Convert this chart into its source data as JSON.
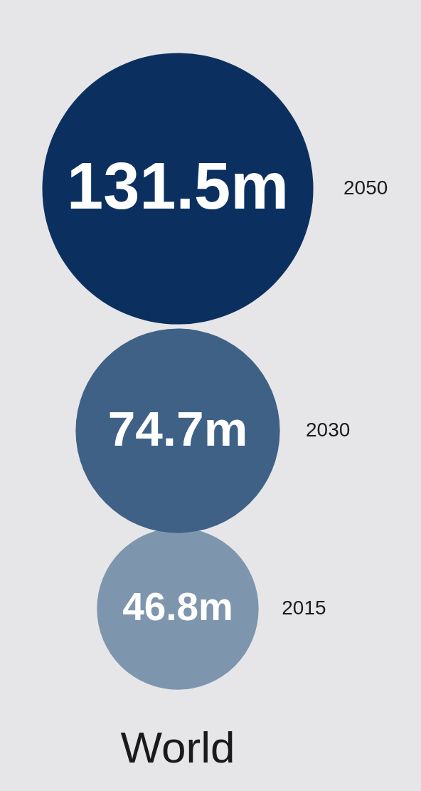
{
  "chart_data": {
    "type": "other",
    "xlabel": "World",
    "categories": [
      "2050",
      "2030",
      "2015"
    ],
    "values": [
      131.5,
      74.7,
      46.8
    ],
    "value_labels": [
      "131.5m",
      "74.7m",
      "46.8m"
    ],
    "colors": [
      "#0b3060",
      "#3f6186",
      "#7e95ae"
    ]
  }
}
